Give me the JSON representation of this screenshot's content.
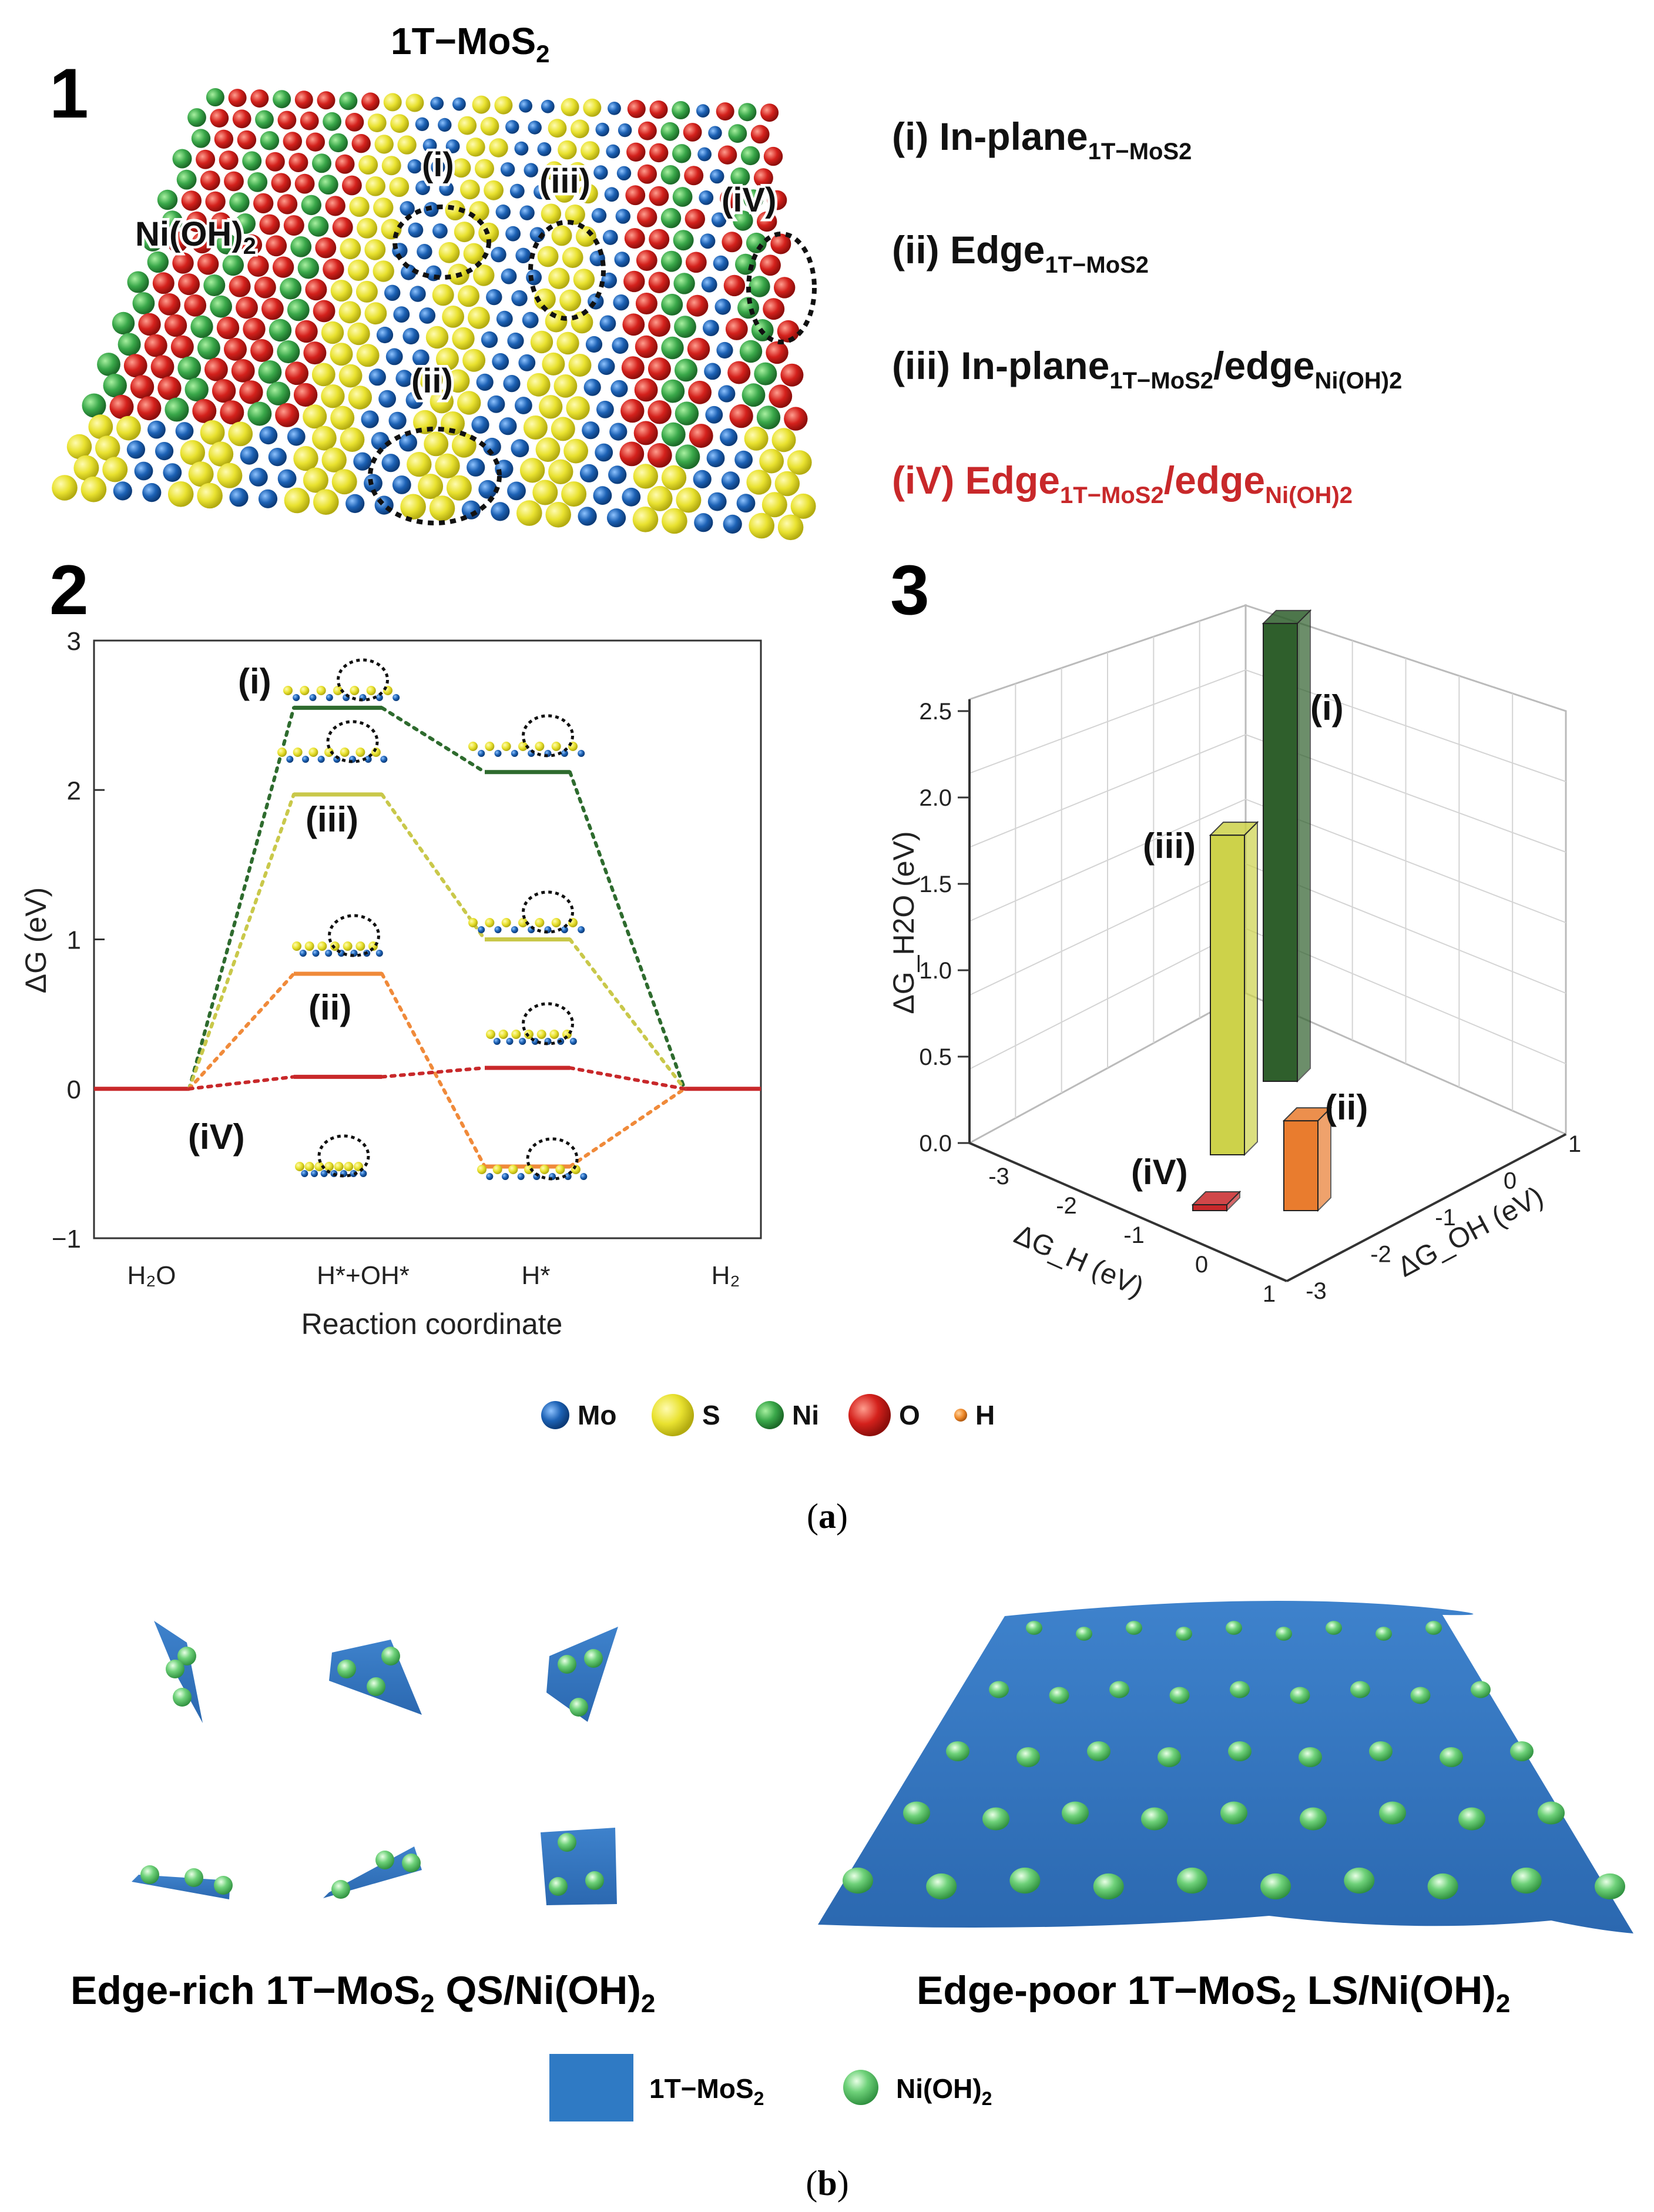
{
  "panel_a": {
    "caption_letter": "a",
    "section1": {
      "number": "1",
      "title_main": "1T−MoS",
      "title_sub": "2",
      "overlay_labels": {
        "i": "(i)",
        "ii": "(ii)",
        "iii": "(iii)",
        "iv": "(iV)",
        "nioh2_main": "Ni(OH)",
        "nioh2_sub": "2"
      },
      "legend": [
        {
          "prefix": "(i) In-plane",
          "sub1": "1T−MoS2",
          "mid": "",
          "sub2": "",
          "color": "#111111"
        },
        {
          "prefix": "(ii) Edge",
          "sub1": "1T−MoS2",
          "mid": "",
          "sub2": "",
          "color": "#111111"
        },
        {
          "prefix": "(iii) In-plane",
          "sub1": "1T−MoS2",
          "mid": "/edge",
          "sub2": "Ni(OH)2",
          "color": "#111111"
        },
        {
          "prefix": "(iV) Edge",
          "sub1": "1T−MoS2",
          "mid": "/edge",
          "sub2": "Ni(OH)2",
          "color": "#c8282a"
        }
      ]
    },
    "section2": {
      "number": "2"
    },
    "section3": {
      "number": "3"
    },
    "atom_legend": [
      {
        "label": "Mo",
        "color": "#1d5fb0"
      },
      {
        "label": "S",
        "color": "#e6e02c"
      },
      {
        "label": "Ni",
        "color": "#3aa84a"
      },
      {
        "label": "O",
        "color": "#c8201e"
      },
      {
        "label": "H",
        "color": "#ef8a2b"
      }
    ]
  },
  "panel_b": {
    "caption_letter": "b",
    "left_label_main": "Edge-rich 1T−MoS",
    "left_label_sub": "2",
    "left_label_rest": " QS/Ni(OH)",
    "left_label_sub2": "2",
    "right_label_main": "Edge-poor 1T−MoS",
    "right_label_sub": "2",
    "right_label_rest": " LS/Ni(OH)",
    "right_label_sub2": "2",
    "legend": [
      {
        "label_main": "1T−MoS",
        "label_sub": "2",
        "color": "#2f7ac4",
        "shape": "square"
      },
      {
        "label_main": "Ni(OH)",
        "label_sub": "2",
        "color": "#5ec46a",
        "shape": "sphere"
      }
    ]
  },
  "chart_data": [
    {
      "type": "line",
      "title": "",
      "xlabel": "Reaction coordinate",
      "ylabel": "ΔG (eV)",
      "categories": [
        "H₂O",
        "H*+OH*",
        "H*",
        "H₂"
      ],
      "yticks": [
        "−1",
        "0",
        "1",
        "2",
        "3"
      ],
      "ylim": [
        -1,
        3
      ],
      "series": [
        {
          "name": "(i)",
          "color": "#2e6b2e",
          "values": [
            0,
            2.55,
            2.12,
            0
          ]
        },
        {
          "name": "(iii)",
          "color": "#c9c84a",
          "values": [
            0,
            1.97,
            1.0,
            0
          ]
        },
        {
          "name": "(ii)",
          "color": "#f08a3a",
          "values": [
            0,
            0.77,
            -0.52,
            0
          ]
        },
        {
          "name": "(iV)",
          "color": "#c8282a",
          "values": [
            0,
            0.08,
            0.14,
            0
          ]
        }
      ]
    },
    {
      "type": "bar",
      "title": "",
      "zlabel": "ΔG_H2O (eV)",
      "xlabel": "ΔG_H (eV)",
      "ylabel": "ΔG_OH (eV)",
      "zticks": [
        "0.0",
        "0.5",
        "1.0",
        "1.5",
        "2.0",
        "2.5"
      ],
      "xticks": [
        "-3",
        "-2",
        "-1",
        "0",
        "1"
      ],
      "yticks": [
        "-3",
        "-2",
        "-1",
        "0",
        "1"
      ],
      "series": [
        {
          "name": "(i)",
          "color": "#2f5f2c",
          "value": 2.65
        },
        {
          "name": "(iii)",
          "color": "#cdd24a",
          "value": 1.85
        },
        {
          "name": "(ii)",
          "color": "#e97c2e",
          "value": 0.52
        },
        {
          "name": "(iV)",
          "color": "#c8282a",
          "value": 0.02
        }
      ]
    }
  ]
}
